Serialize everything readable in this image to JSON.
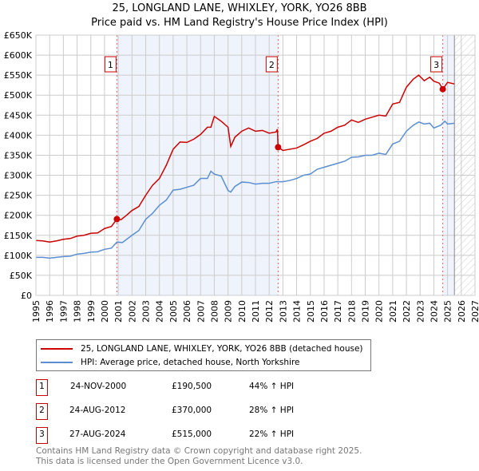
{
  "title": "25, LONGLAND LANE, WHIXLEY, YORK, YO26 8BB",
  "subtitle": "Price paid vs. HM Land Registry's House Price Index (HPI)",
  "colors": {
    "property": "#cc0000",
    "hpi": "#5b8fd1",
    "shade": "#eef3fc"
  },
  "chart_data": {
    "type": "line",
    "title": "25, LONGLAND LANE, WHIXLEY, YORK, YO26 8BB — Price paid vs. HM Land Registry's House Price Index (HPI)",
    "xlim": [
      1995,
      2027
    ],
    "ylim": [
      0,
      650000
    ],
    "x_ticks": [
      "1995",
      "1996",
      "1997",
      "1998",
      "1999",
      "2000",
      "2001",
      "2002",
      "2003",
      "2004",
      "2005",
      "2006",
      "2007",
      "2008",
      "2009",
      "2010",
      "2011",
      "2012",
      "2013",
      "2014",
      "2015",
      "2016",
      "2017",
      "2018",
      "2019",
      "2020",
      "2021",
      "2022",
      "2023",
      "2024",
      "2025",
      "2026",
      "2027"
    ],
    "y_ticks": [
      "£0",
      "£50K",
      "£100K",
      "£150K",
      "£200K",
      "£250K",
      "£300K",
      "£350K",
      "£400K",
      "£450K",
      "£500K",
      "£550K",
      "£600K",
      "£650K"
    ],
    "grid": true,
    "series": [
      {
        "name": "25, LONGLAND LANE, WHIXLEY, YORK, YO26 8BB (detached house)",
        "color": "#cc0000",
        "x": [
          1995,
          1995.5,
          1996,
          1996.5,
          1997,
          1997.5,
          1998,
          1998.5,
          1999,
          1999.5,
          2000,
          2000.5,
          2000.9,
          2001.2,
          2001.6,
          2002,
          2002.5,
          2003,
          2003.5,
          2004,
          2004.5,
          2005,
          2005.5,
          2006,
          2006.5,
          2007,
          2007.5,
          2007.75,
          2008,
          2008.5,
          2009,
          2009.2,
          2009.5,
          2010,
          2010.5,
          2011,
          2011.5,
          2012,
          2012.5,
          2012.6,
          2012.65,
          2013,
          2013.5,
          2014,
          2014.5,
          2015,
          2015.5,
          2016,
          2016.5,
          2017,
          2017.5,
          2018,
          2018.5,
          2019,
          2019.5,
          2020,
          2020.5,
          2021,
          2021.5,
          2022,
          2022.5,
          2022.9,
          2023.3,
          2023.7,
          2024,
          2024.4,
          2024.65,
          2025,
          2025.5
        ],
        "y": [
          137000,
          136000,
          133000,
          136000,
          140000,
          142000,
          148000,
          150000,
          155000,
          156000,
          167000,
          172000,
          190500,
          189000,
          200000,
          212000,
          222000,
          250000,
          275000,
          292000,
          325000,
          365000,
          383000,
          382000,
          390000,
          402000,
          420000,
          420000,
          447000,
          435000,
          420000,
          372000,
          395000,
          410000,
          418000,
          410000,
          412000,
          405000,
          408000,
          415000,
          370000,
          362000,
          365000,
          368000,
          376000,
          385000,
          392000,
          405000,
          410000,
          420000,
          425000,
          438000,
          432000,
          440000,
          445000,
          450000,
          448000,
          478000,
          482000,
          520000,
          540000,
          550000,
          536000,
          545000,
          535000,
          530000,
          515000,
          532000,
          528000
        ]
      },
      {
        "name": "HPI: Average price, detached house, North Yorkshire",
        "color": "#5b8fd1",
        "x": [
          1995,
          1995.5,
          1996,
          1996.5,
          1997,
          1997.5,
          1998,
          1998.5,
          1999,
          1999.5,
          2000,
          2000.5,
          2000.9,
          2001.3,
          2002,
          2002.5,
          2003,
          2003.5,
          2004,
          2004.5,
          2005,
          2005.5,
          2006,
          2006.5,
          2007,
          2007.5,
          2007.75,
          2008,
          2008.5,
          2009,
          2009.2,
          2009.5,
          2010,
          2010.5,
          2011,
          2011.5,
          2012,
          2012.5,
          2013,
          2013.5,
          2014,
          2014.5,
          2015,
          2015.5,
          2016,
          2016.5,
          2017,
          2017.5,
          2018,
          2018.5,
          2019,
          2019.5,
          2020,
          2020.5,
          2021,
          2021.5,
          2022,
          2022.5,
          2022.9,
          2023.3,
          2023.7,
          2024,
          2024.5,
          2024.8,
          2025,
          2025.5
        ],
        "y": [
          95000,
          95000,
          93000,
          95000,
          97000,
          98000,
          103000,
          105000,
          108000,
          109000,
          115000,
          118000,
          133000,
          132000,
          150000,
          162000,
          190000,
          205000,
          225000,
          238000,
          263000,
          265000,
          270000,
          275000,
          292000,
          292000,
          310000,
          303000,
          298000,
          262000,
          258000,
          272000,
          283000,
          282000,
          278000,
          280000,
          280000,
          284000,
          284000,
          287000,
          292000,
          300000,
          303000,
          315000,
          320000,
          325000,
          330000,
          335000,
          345000,
          346000,
          350000,
          350000,
          355000,
          352000,
          378000,
          385000,
          410000,
          425000,
          433000,
          428000,
          430000,
          418000,
          425000,
          435000,
          428000,
          430000
        ]
      }
    ],
    "sales": [
      {
        "label": "1",
        "x": 2000.9,
        "y": 190500
      },
      {
        "label": "2",
        "x": 2012.65,
        "y": 370000
      },
      {
        "label": "3",
        "x": 2024.65,
        "y": 515000
      }
    ],
    "shaded_ranges": [
      [
        2000.9,
        2012.65
      ],
      [
        2024.65,
        2025.5
      ]
    ],
    "forecast_from": 2025.5
  },
  "legend": {
    "property": "25, LONGLAND LANE, WHIXLEY, YORK, YO26 8BB (detached house)",
    "hpi": "HPI: Average price, detached house, North Yorkshire"
  },
  "transactions": [
    {
      "num": "1",
      "date": "24-NOV-2000",
      "price": "£190,500",
      "hpi": "44% ↑ HPI"
    },
    {
      "num": "2",
      "date": "24-AUG-2012",
      "price": "£370,000",
      "hpi": "28% ↑ HPI"
    },
    {
      "num": "3",
      "date": "27-AUG-2024",
      "price": "£515,000",
      "hpi": "22% ↑ HPI"
    }
  ],
  "footer": {
    "line1": "Contains HM Land Registry data © Crown copyright and database right 2025.",
    "line2": "This data is licensed under the Open Government Licence v3.0."
  }
}
